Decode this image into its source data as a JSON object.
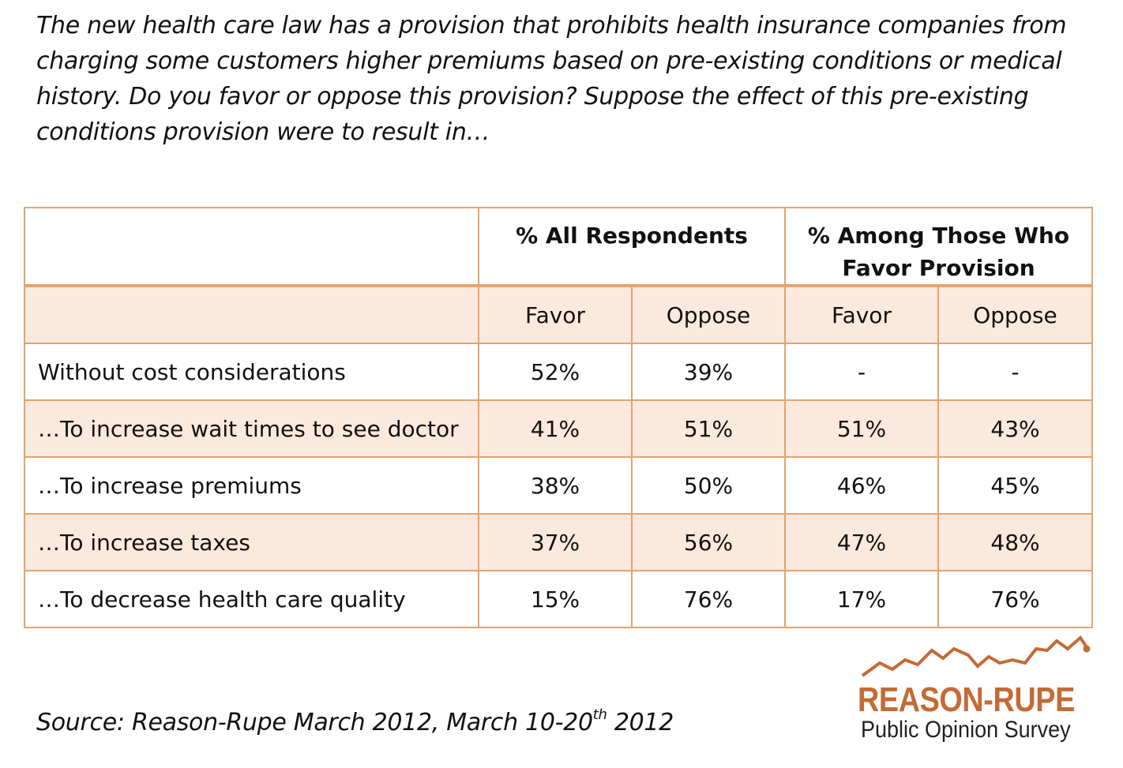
{
  "question": "The new health care law has a provision that prohibits health insurance companies from charging some customers higher premiums based on pre-existing conditions or medical history. Do you favor or oppose this provision? Suppose the effect of this pre-existing conditions provision were to result in…",
  "chart_data": {
    "type": "table",
    "group_headers": [
      "% All Respondents",
      "% Among Those Who Favor Provision"
    ],
    "sub_headers": [
      "Favor",
      "Oppose",
      "Favor",
      "Oppose"
    ],
    "rows": [
      {
        "label": "Without cost considerations",
        "values": [
          "52%",
          "39%",
          "-",
          "-"
        ]
      },
      {
        "label": "…To increase wait times to see doctor",
        "values": [
          "41%",
          "51%",
          "51%",
          "43%"
        ]
      },
      {
        "label": "…To increase premiums",
        "values": [
          "38%",
          "50%",
          "46%",
          "45%"
        ]
      },
      {
        "label": "…To increase taxes",
        "values": [
          "37%",
          "56%",
          "47%",
          "48%"
        ]
      },
      {
        "label": "…To decrease health care quality",
        "values": [
          "15%",
          "76%",
          "17%",
          "76%"
        ]
      }
    ]
  },
  "source": {
    "prefix": "Source: Reason-Rupe March 2012, March 10-20",
    "superscript": "th",
    "suffix": " 2012"
  },
  "logo": {
    "name": "REASON-RUPE",
    "tagline": "Public Opinion Survey",
    "icon": "line-trend-icon"
  },
  "colors": {
    "border": "#e3a46f",
    "shade": "#fbe9dd",
    "brand": "#c46a35"
  }
}
